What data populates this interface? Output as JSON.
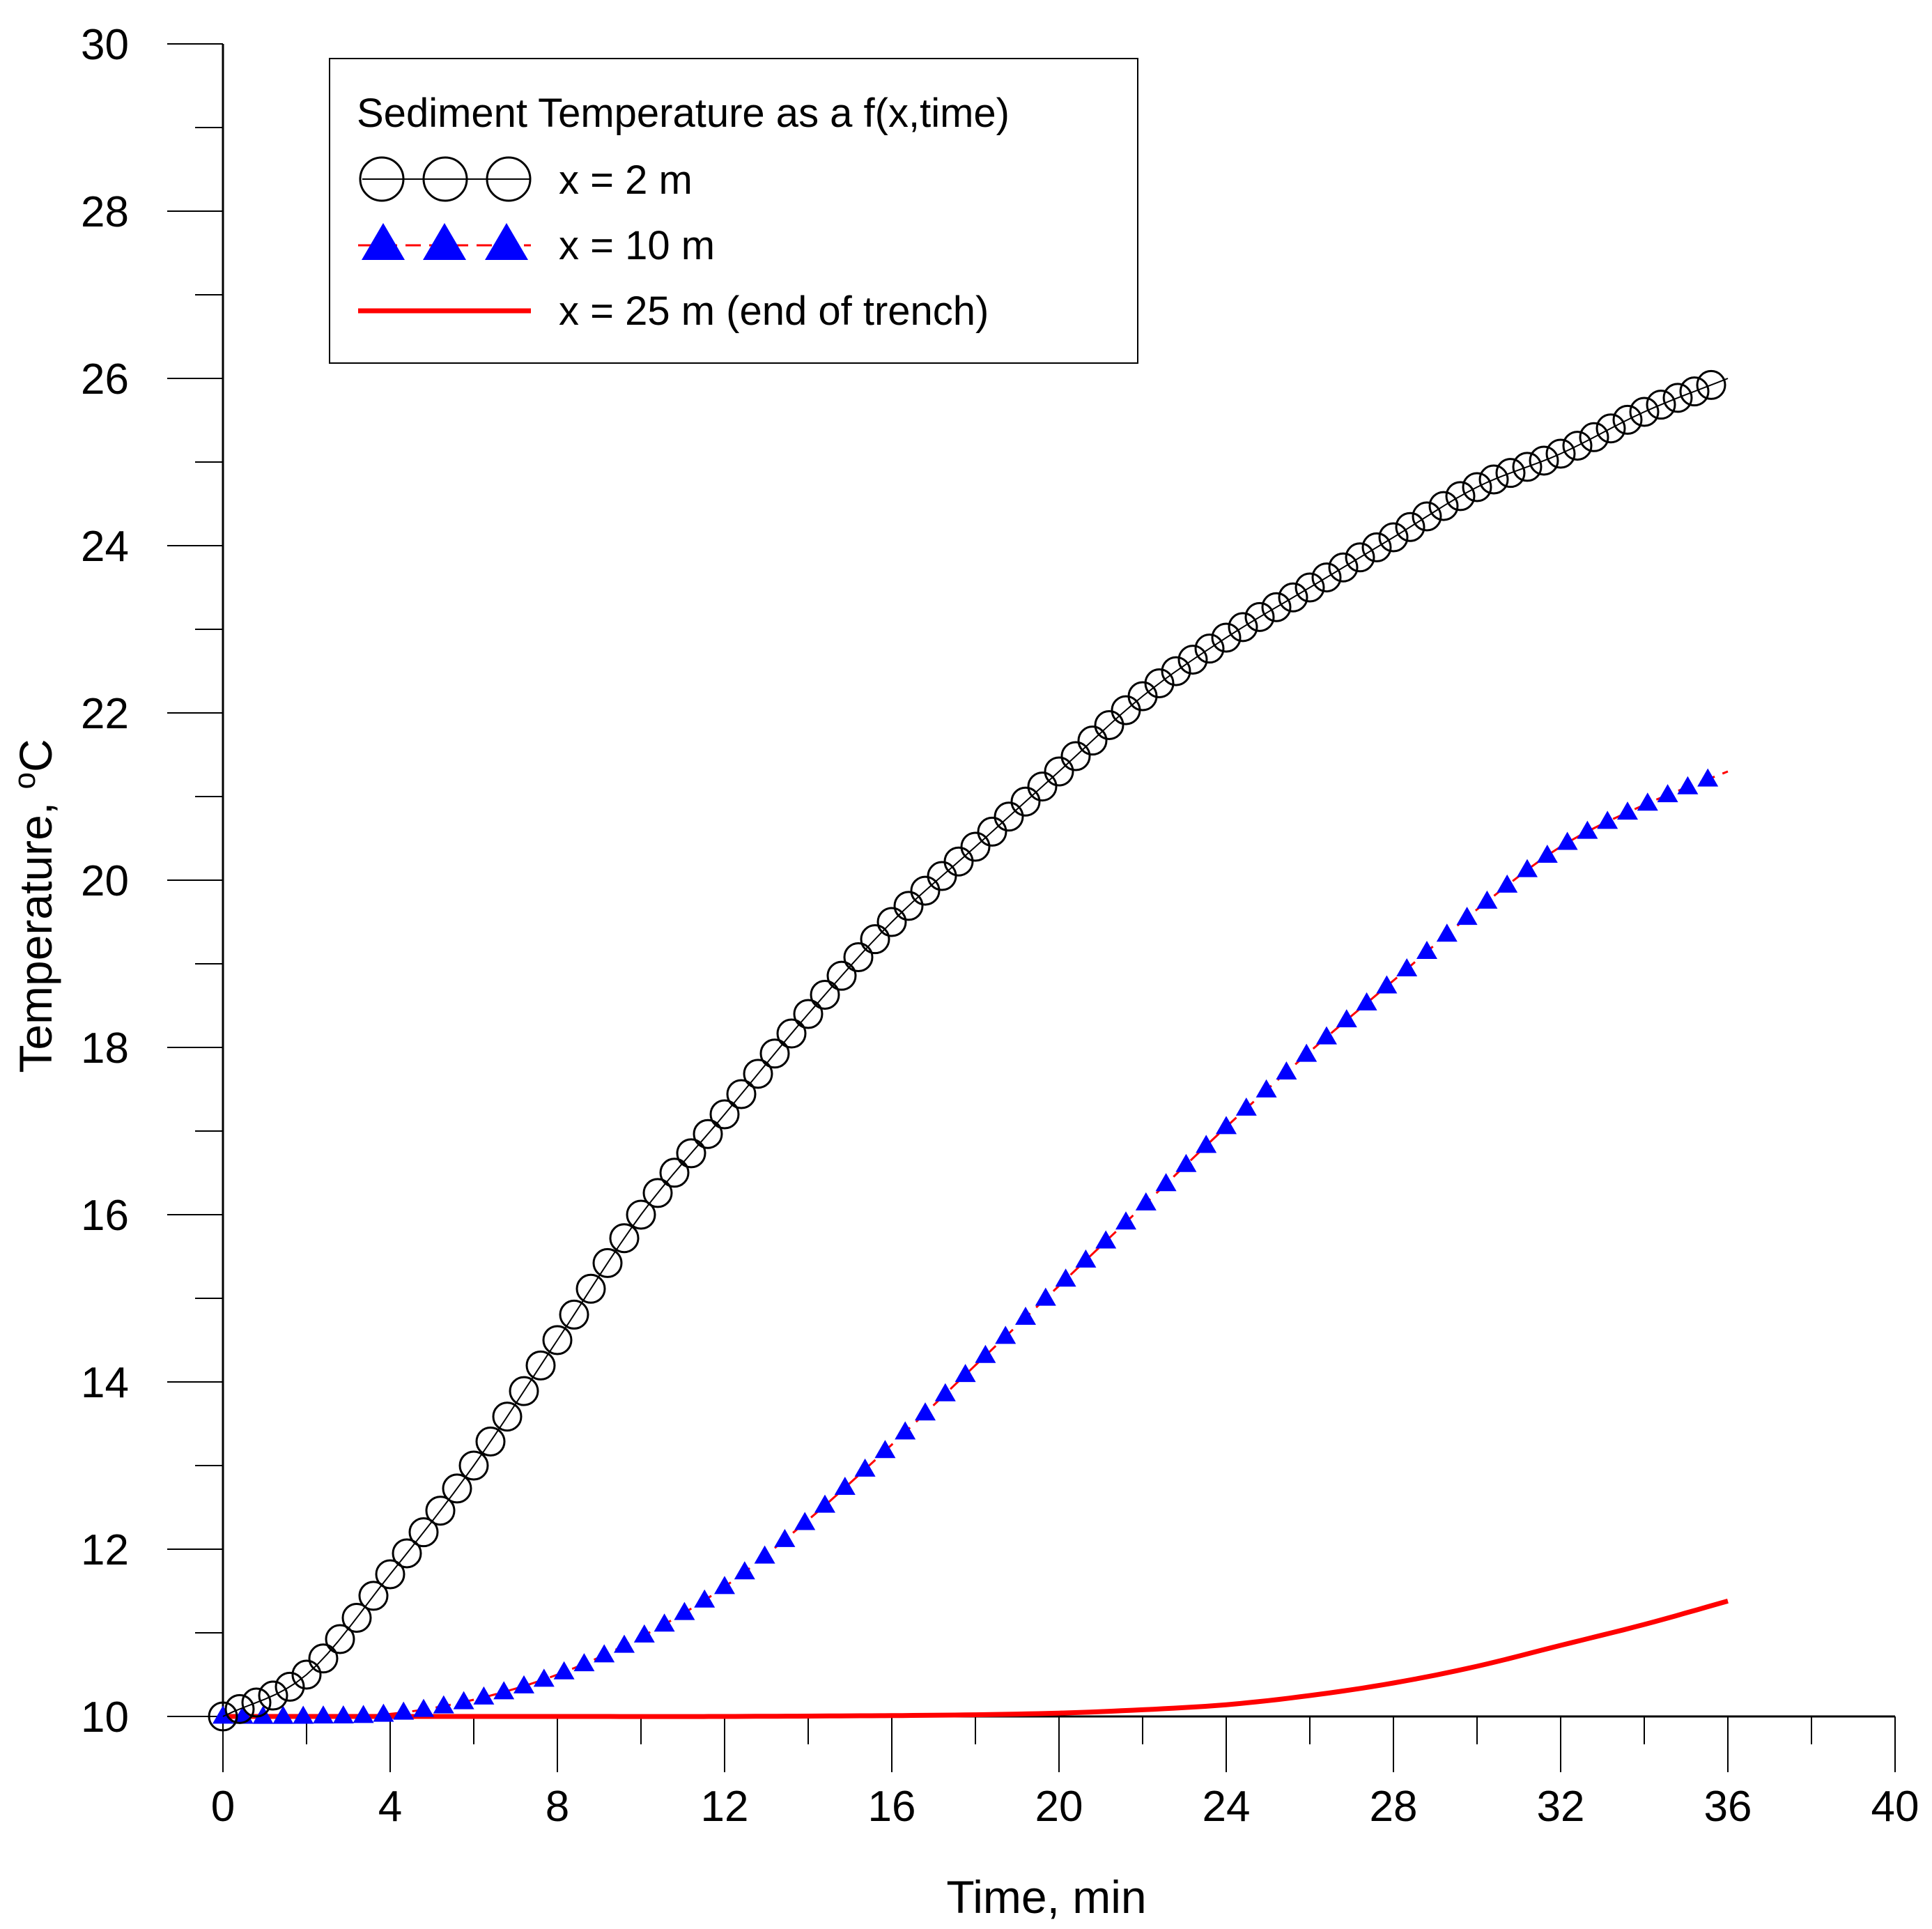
{
  "chart_data": {
    "type": "line",
    "title": "",
    "xlabel": "Time, min",
    "ylabel": "Temperature, ",
    "ylabel_unit": "oC",
    "xlim": [
      0,
      40
    ],
    "ylim": [
      10,
      30
    ],
    "xticks": [
      "0",
      "4",
      "8",
      "12",
      "16",
      "20",
      "24",
      "28",
      "32",
      "36",
      "40"
    ],
    "yticks": [
      "10",
      "12",
      "14",
      "16",
      "18",
      "20",
      "22",
      "24",
      "26",
      "28",
      "30"
    ],
    "grid": false,
    "legend": {
      "position": "top-left",
      "title": "Sediment Temperature as a f(x,time)"
    },
    "series": [
      {
        "name": "x = 2 m",
        "marker": "open-circle",
        "color": "#000000",
        "x": [
          0,
          2,
          4,
          6,
          8,
          10,
          12,
          14,
          16,
          18,
          20,
          22,
          24,
          26,
          28,
          30,
          32,
          34,
          36
        ],
        "y": [
          10.0,
          10.5,
          11.7,
          13.0,
          14.5,
          16.0,
          17.2,
          18.4,
          19.5,
          20.4,
          21.3,
          22.2,
          22.9,
          23.5,
          24.1,
          24.7,
          25.1,
          25.6,
          26.0
        ]
      },
      {
        "name": "x = 10 m",
        "marker": "filled-triangle",
        "color": "#0000ff",
        "line_color": "#ff0000",
        "x": [
          0,
          2,
          4,
          6,
          8,
          10,
          12,
          14,
          16,
          18,
          20,
          22,
          24,
          26,
          28,
          30,
          32,
          34,
          36
        ],
        "y": [
          10.0,
          10.0,
          10.03,
          10.2,
          10.5,
          10.95,
          11.55,
          12.35,
          13.25,
          14.2,
          15.15,
          16.1,
          17.05,
          17.95,
          18.8,
          19.65,
          20.4,
          20.9,
          21.3
        ]
      },
      {
        "name": "x = 25 m (end of trench)",
        "marker": "none",
        "color": "#ff0000",
        "x": [
          0,
          4,
          8,
          12,
          16,
          18,
          20,
          22,
          24,
          26,
          28,
          30,
          32,
          34,
          36
        ],
        "y": [
          10.0,
          10.0,
          10.0,
          10.0,
          10.01,
          10.02,
          10.04,
          10.08,
          10.14,
          10.25,
          10.4,
          10.6,
          10.85,
          11.1,
          11.38
        ]
      }
    ]
  }
}
